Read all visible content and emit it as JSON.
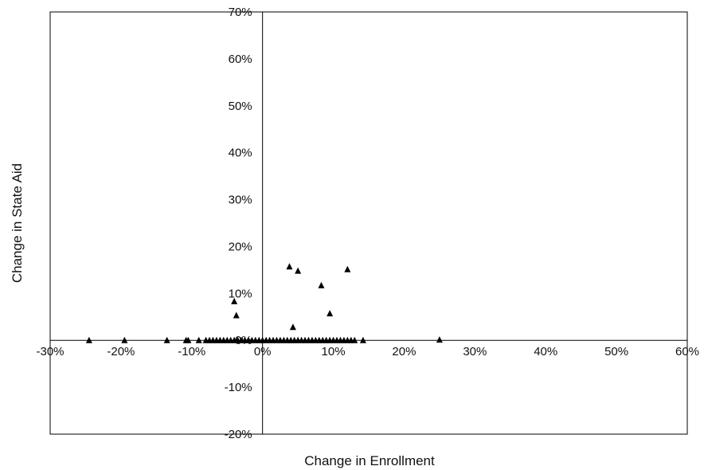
{
  "chart_data": {
    "type": "scatter",
    "xlabel": "Change in Enrollment",
    "ylabel": "Change in State Aid",
    "xlim": [
      -30,
      60
    ],
    "ylim": [
      -20,
      70
    ],
    "x_ticks": [
      "-30%",
      "-20%",
      "-10%",
      "0%",
      "10%",
      "20%",
      "30%",
      "40%",
      "50%",
      "60%"
    ],
    "y_ticks": [
      "-20%",
      "-10%",
      "0%",
      "10%",
      "20%",
      "30%",
      "40%",
      "50%",
      "60%",
      "70%"
    ],
    "grid": false,
    "legend": "none",
    "marker": "triangle",
    "marker_color": "#000000",
    "series": [
      {
        "points": [
          [
            -24.5,
            0
          ],
          [
            -19.5,
            0
          ],
          [
            -13.5,
            0
          ],
          [
            -10.8,
            0
          ],
          [
            -10.5,
            0
          ],
          [
            -9,
            0
          ],
          [
            -8,
            0
          ],
          [
            -7.5,
            0
          ],
          [
            -7,
            0
          ],
          [
            -6.5,
            0
          ],
          [
            -6,
            0
          ],
          [
            -5.5,
            0
          ],
          [
            -5,
            0
          ],
          [
            -4.5,
            0
          ],
          [
            -4,
            0
          ],
          [
            -4,
            8.3
          ],
          [
            -3.7,
            5.3
          ],
          [
            -3.5,
            0
          ],
          [
            -3,
            0
          ],
          [
            -2.5,
            0
          ],
          [
            -2,
            0
          ],
          [
            -1.5,
            0
          ],
          [
            -1,
            0
          ],
          [
            -0.5,
            0
          ],
          [
            0,
            0
          ],
          [
            0.5,
            0
          ],
          [
            1,
            0
          ],
          [
            1.5,
            0
          ],
          [
            2,
            0
          ],
          [
            2.5,
            0
          ],
          [
            3,
            0
          ],
          [
            3.5,
            0
          ],
          [
            4,
            0
          ],
          [
            4.5,
            0
          ],
          [
            5,
            0
          ],
          [
            5.5,
            0
          ],
          [
            6,
            0
          ],
          [
            6.5,
            0
          ],
          [
            7,
            0
          ],
          [
            7.5,
            0
          ],
          [
            8,
            0
          ],
          [
            8.5,
            0
          ],
          [
            9,
            0
          ],
          [
            9.5,
            0
          ],
          [
            10,
            0
          ],
          [
            10.5,
            0
          ],
          [
            11,
            0
          ],
          [
            11.5,
            0
          ],
          [
            12,
            0
          ],
          [
            12.5,
            0
          ],
          [
            13,
            0
          ],
          [
            14.2,
            0
          ],
          [
            4.3,
            2.8
          ],
          [
            3.8,
            15.7
          ],
          [
            5,
            14.8
          ],
          [
            8.3,
            11.7
          ],
          [
            9.5,
            5.7
          ],
          [
            12,
            15.1
          ],
          [
            25,
            0.1
          ]
        ]
      }
    ]
  }
}
